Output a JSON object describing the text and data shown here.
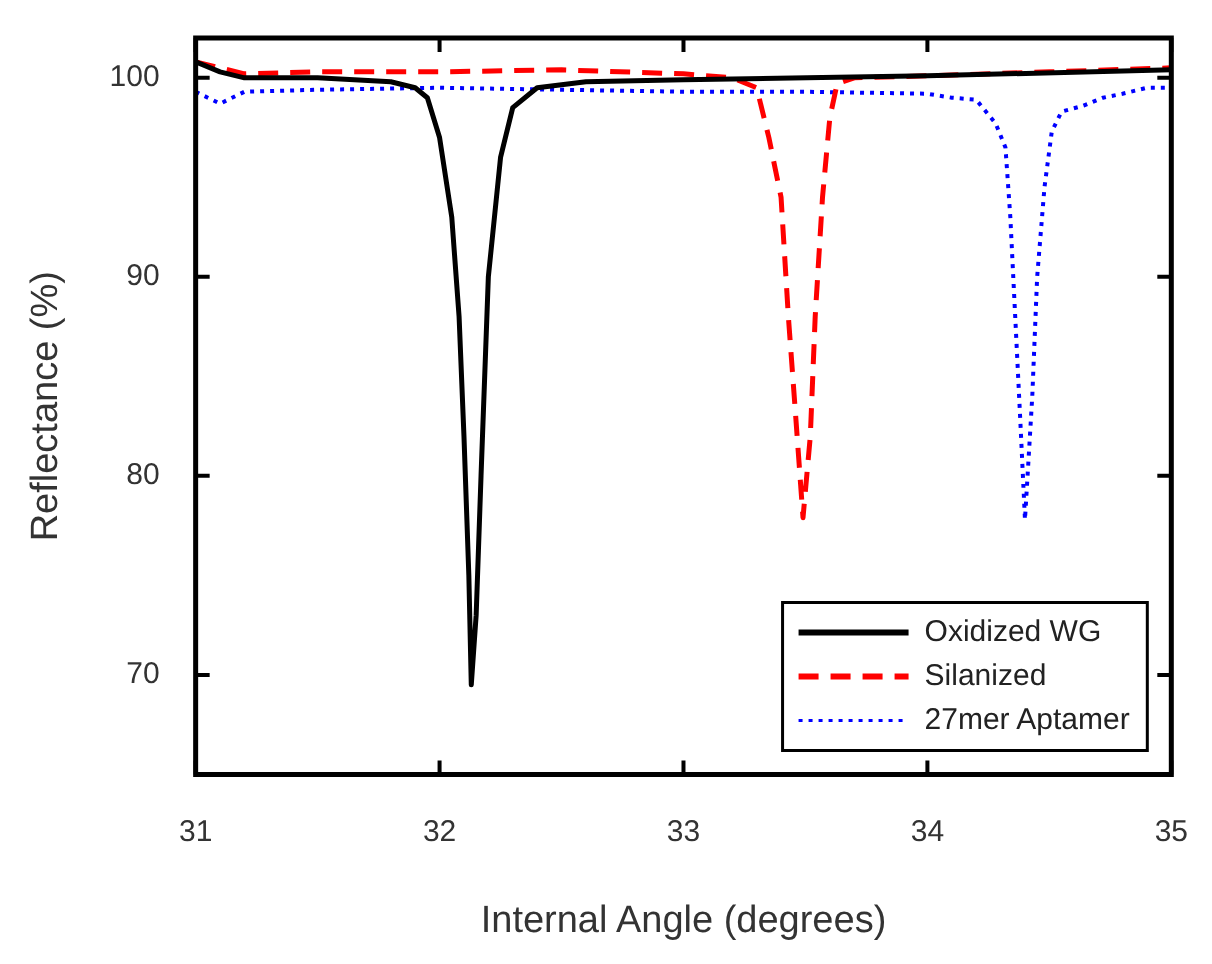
{
  "chart_data": {
    "type": "line",
    "xlabel": "Internal Angle (degrees)",
    "ylabel": "Reflectance (%)",
    "xlim": [
      31,
      35
    ],
    "xticks": [
      31,
      32,
      33,
      34,
      35
    ],
    "ylim": [
      65,
      102
    ],
    "yticks": [
      70,
      80,
      90,
      100
    ],
    "grid": false,
    "legend": "bottom right",
    "marker": "none",
    "series": [
      {
        "name": "Oxidized WG",
        "color": "#000000",
        "line_style": "solid",
        "x": [
          31,
          31.1,
          31.2,
          31.5,
          31.8,
          31.9,
          31.95,
          32.0,
          32.05,
          32.08,
          32.1,
          32.12,
          32.13,
          32.15,
          32.17,
          32.2,
          32.25,
          32.3,
          32.4,
          32.6,
          33,
          34,
          35
        ],
        "values": [
          100.8,
          100.3,
          100,
          100,
          99.8,
          99.5,
          99,
          97,
          93,
          88,
          82,
          75,
          69.5,
          73,
          80,
          90,
          96,
          98.5,
          99.5,
          99.8,
          99.9,
          100.1,
          100.4
        ]
      },
      {
        "name": "Silanized",
        "color": "#ff0000",
        "line_style": "dashed",
        "x": [
          31,
          31.1,
          31.2,
          31.5,
          32,
          32.5,
          33,
          33.2,
          33.3,
          33.35,
          33.4,
          33.43,
          33.46,
          33.49,
          33.52,
          33.54,
          33.57,
          33.6,
          33.63,
          33.7,
          34,
          34.5,
          35
        ],
        "values": [
          100.8,
          100.5,
          100.2,
          100.3,
          100.3,
          100.4,
          100.2,
          100,
          99.5,
          97,
          94,
          88,
          83,
          77.9,
          82,
          88,
          94,
          98,
          99.7,
          100,
          100.1,
          100.3,
          100.5
        ]
      },
      {
        "name": "27mer Aptamer",
        "color": "#0000ff",
        "line_style": "dotted",
        "x": [
          31,
          31.05,
          31.1,
          31.2,
          31.5,
          32,
          32.5,
          33,
          33.5,
          34,
          34.1,
          34.2,
          34.28,
          34.32,
          34.34,
          34.36,
          34.38,
          34.4,
          34.43,
          34.45,
          34.48,
          34.51,
          34.55,
          34.64,
          34.72,
          34.8,
          34.9,
          35
        ],
        "values": [
          99.3,
          99,
          98.7,
          99.3,
          99.4,
          99.5,
          99.4,
          99.3,
          99.3,
          99.2,
          99,
          98.9,
          97.7,
          96.5,
          93,
          88,
          83,
          77.8,
          84,
          90,
          94.5,
          97.3,
          98.3,
          98.6,
          99,
          99.2,
          99.5,
          99.5
        ]
      }
    ]
  }
}
